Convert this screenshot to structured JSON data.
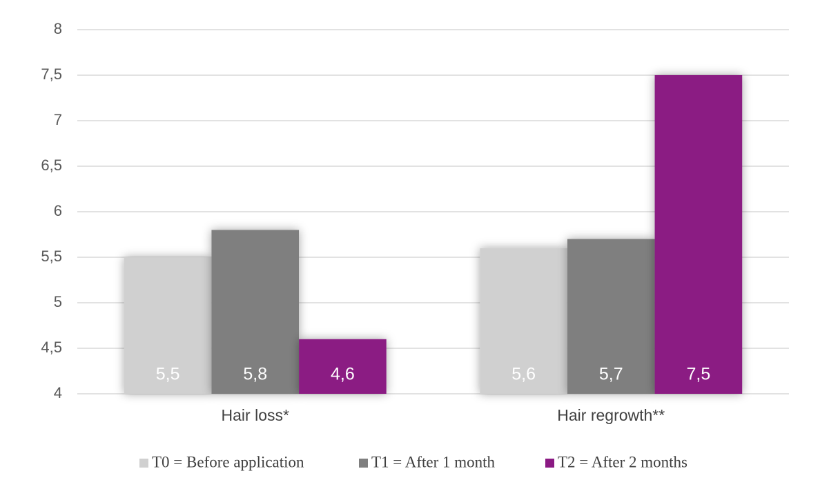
{
  "chart_data": {
    "type": "bar",
    "categories": [
      "Hair loss*",
      "Hair regrowth**"
    ],
    "series": [
      {
        "name": "T0 = Before application",
        "color": "#d0d0d0",
        "values": [
          5.5,
          5.6
        ],
        "value_labels": [
          "5,5",
          "5,6"
        ]
      },
      {
        "name": "T1 = After 1 month",
        "color": "#7f7f7f",
        "values": [
          5.8,
          5.7
        ],
        "value_labels": [
          "5,8",
          "5,7"
        ]
      },
      {
        "name": "T2 = After 2 months",
        "color": "#8b1a83",
        "values": [
          4.6,
          7.5
        ],
        "value_labels": [
          "4,6",
          "7,5"
        ]
      }
    ],
    "ylim": [
      4,
      8
    ],
    "yticks": [
      4,
      {
        "value": 4.5,
        "label": "4,5"
      },
      5,
      {
        "value": 5.5,
        "label": "5,5"
      },
      6,
      {
        "value": 6.5,
        "label": "6,5"
      },
      7,
      {
        "value": 7.5,
        "label": "7,5"
      },
      8
    ],
    "grid": true,
    "legend": "bottom"
  }
}
